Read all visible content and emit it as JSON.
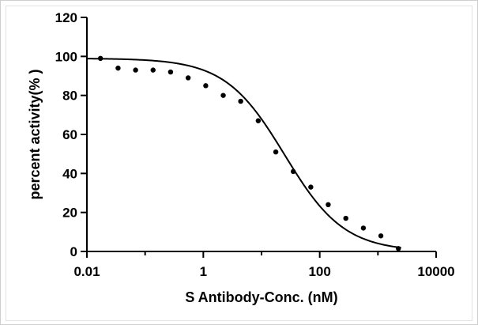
{
  "chart_data": {
    "type": "scatter",
    "title": "",
    "xlabel": "S Antibody-Conc. (nM)",
    "ylabel": "percent activity(% )",
    "x_scale": "log10",
    "xlim": [
      0.01,
      10000
    ],
    "ylim": [
      0,
      120
    ],
    "x_ticks": [
      0.01,
      1,
      100,
      10000
    ],
    "x_tick_labels": [
      "0.01",
      "1",
      "100",
      "10000"
    ],
    "y_ticks": [
      0,
      20,
      40,
      60,
      80,
      100,
      120
    ],
    "y_tick_labels": [
      "0",
      "20",
      "40",
      "60",
      "80",
      "100",
      "120"
    ],
    "grid": false,
    "legend": "none",
    "points": {
      "x": [
        0.0171,
        0.0343,
        0.0686,
        0.137,
        0.274,
        0.549,
        1.1,
        2.2,
        4.39,
        8.78,
        17.6,
        35.1,
        70.2,
        140,
        281,
        562,
        1124,
        2247
      ],
      "y": [
        99,
        94,
        93,
        93,
        92,
        89,
        85,
        80,
        77,
        67,
        51,
        41,
        33,
        24,
        17,
        12,
        8,
        1.5
      ]
    },
    "fit": {
      "model": "four-parameter logistic",
      "top": 99,
      "bottom": 0,
      "ic50": 25,
      "hill": 0.85,
      "x_range": [
        0.01,
        2500
      ]
    },
    "colors": {
      "points": "#000000",
      "fit": "#000000",
      "axes": "#000000"
    }
  }
}
